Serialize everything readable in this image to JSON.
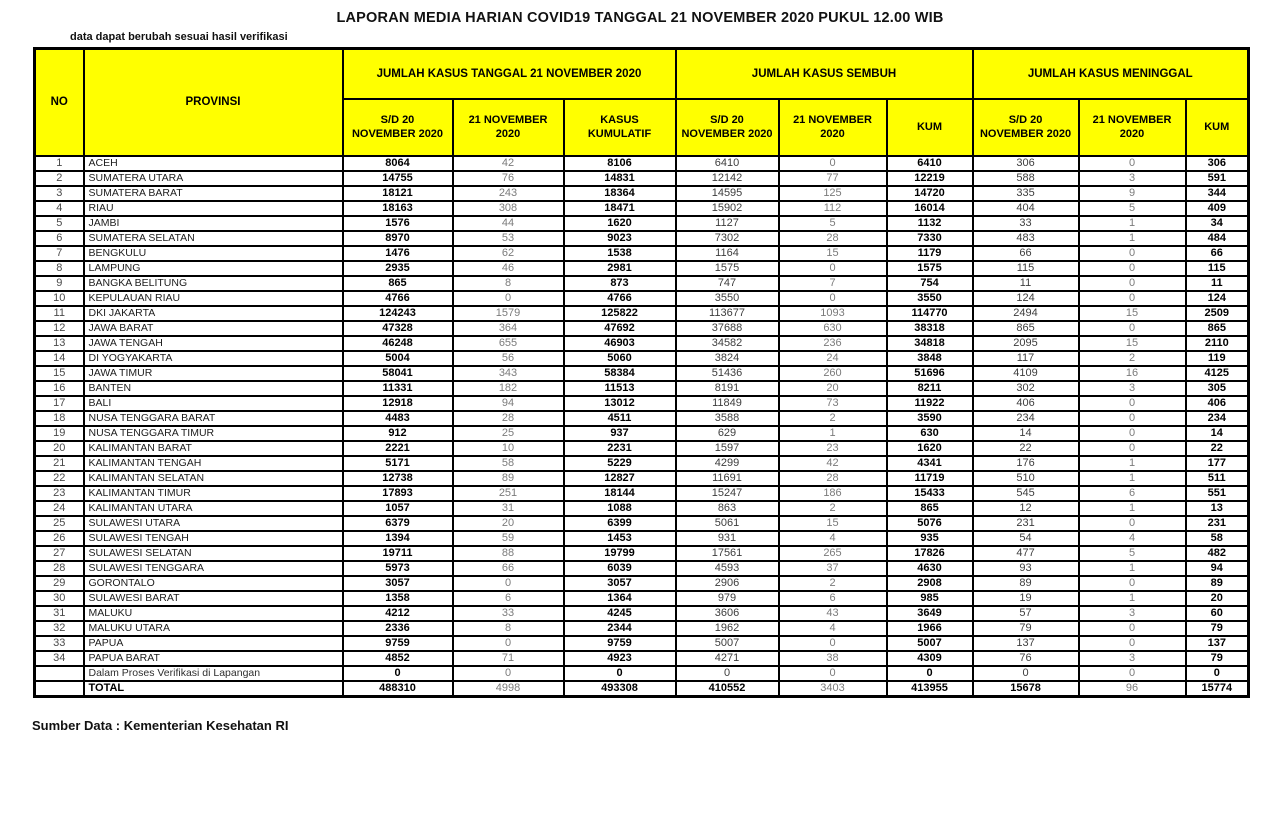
{
  "title": "LAPORAN MEDIA HARIAN COVID19 TANGGAL 21 NOVEMBER 2020 PUKUL 12.00 WIB",
  "subtitle": "data dapat berubah sesuai hasil verifikasi",
  "source_note": "Sumber Data : Kementerian Kesehatan RI",
  "colors": {
    "header_bg": "#FFFF00",
    "border": "#000000",
    "bold_text": "#000000",
    "muted_text": "#7b7b7b"
  },
  "table": {
    "no_label": "NO",
    "provinsi_label": "PROVINSI",
    "groups": [
      {
        "label": "JUMLAH KASUS TANGGAL 21 NOVEMBER 2020",
        "subcols": [
          "S/D 20 NOVEMBER 2020",
          "21 NOVEMBER 2020",
          "KASUS KUMULATIF"
        ]
      },
      {
        "label": "JUMLAH KASUS SEMBUH",
        "subcols": [
          "S/D 20 NOVEMBER 2020",
          "21 NOVEMBER 2020",
          "KUM"
        ]
      },
      {
        "label": "JUMLAH KASUS MENINGGAL",
        "subcols": [
          "S/D 20 NOVEMBER 2020",
          "21 NOVEMBER 2020",
          "KUM"
        ]
      }
    ],
    "rows": [
      {
        "no": "1",
        "province": "ACEH",
        "values": [
          "8064",
          "42",
          "8106",
          "6410",
          "0",
          "6410",
          "306",
          "0",
          "306"
        ]
      },
      {
        "no": "2",
        "province": "SUMATERA UTARA",
        "values": [
          "14755",
          "76",
          "14831",
          "12142",
          "77",
          "12219",
          "588",
          "3",
          "591"
        ]
      },
      {
        "no": "3",
        "province": "SUMATERA BARAT",
        "values": [
          "18121",
          "243",
          "18364",
          "14595",
          "125",
          "14720",
          "335",
          "9",
          "344"
        ]
      },
      {
        "no": "4",
        "province": "RIAU",
        "values": [
          "18163",
          "308",
          "18471",
          "15902",
          "112",
          "16014",
          "404",
          "5",
          "409"
        ]
      },
      {
        "no": "5",
        "province": "JAMBI",
        "values": [
          "1576",
          "44",
          "1620",
          "1127",
          "5",
          "1132",
          "33",
          "1",
          "34"
        ]
      },
      {
        "no": "6",
        "province": "SUMATERA SELATAN",
        "values": [
          "8970",
          "53",
          "9023",
          "7302",
          "28",
          "7330",
          "483",
          "1",
          "484"
        ]
      },
      {
        "no": "7",
        "province": "BENGKULU",
        "values": [
          "1476",
          "62",
          "1538",
          "1164",
          "15",
          "1179",
          "66",
          "0",
          "66"
        ]
      },
      {
        "no": "8",
        "province": "LAMPUNG",
        "values": [
          "2935",
          "46",
          "2981",
          "1575",
          "0",
          "1575",
          "115",
          "0",
          "115"
        ]
      },
      {
        "no": "9",
        "province": "BANGKA BELITUNG",
        "values": [
          "865",
          "8",
          "873",
          "747",
          "7",
          "754",
          "11",
          "0",
          "11"
        ]
      },
      {
        "no": "10",
        "province": "KEPULAUAN RIAU",
        "values": [
          "4766",
          "0",
          "4766",
          "3550",
          "0",
          "3550",
          "124",
          "0",
          "124"
        ]
      },
      {
        "no": "11",
        "province": "DKI JAKARTA",
        "values": [
          "124243",
          "1579",
          "125822",
          "113677",
          "1093",
          "114770",
          "2494",
          "15",
          "2509"
        ]
      },
      {
        "no": "12",
        "province": "JAWA BARAT",
        "values": [
          "47328",
          "364",
          "47692",
          "37688",
          "630",
          "38318",
          "865",
          "0",
          "865"
        ]
      },
      {
        "no": "13",
        "province": "JAWA TENGAH",
        "values": [
          "46248",
          "655",
          "46903",
          "34582",
          "236",
          "34818",
          "2095",
          "15",
          "2110"
        ]
      },
      {
        "no": "14",
        "province": "DI YOGYAKARTA",
        "values": [
          "5004",
          "56",
          "5060",
          "3824",
          "24",
          "3848",
          "117",
          "2",
          "119"
        ]
      },
      {
        "no": "15",
        "province": "JAWA TIMUR",
        "values": [
          "58041",
          "343",
          "58384",
          "51436",
          "260",
          "51696",
          "4109",
          "16",
          "4125"
        ]
      },
      {
        "no": "16",
        "province": "BANTEN",
        "values": [
          "11331",
          "182",
          "11513",
          "8191",
          "20",
          "8211",
          "302",
          "3",
          "305"
        ]
      },
      {
        "no": "17",
        "province": "BALI",
        "values": [
          "12918",
          "94",
          "13012",
          "11849",
          "73",
          "11922",
          "406",
          "0",
          "406"
        ]
      },
      {
        "no": "18",
        "province": "NUSA TENGGARA BARAT",
        "values": [
          "4483",
          "28",
          "4511",
          "3588",
          "2",
          "3590",
          "234",
          "0",
          "234"
        ]
      },
      {
        "no": "19",
        "province": "NUSA TENGGARA TIMUR",
        "values": [
          "912",
          "25",
          "937",
          "629",
          "1",
          "630",
          "14",
          "0",
          "14"
        ]
      },
      {
        "no": "20",
        "province": "KALIMANTAN BARAT",
        "values": [
          "2221",
          "10",
          "2231",
          "1597",
          "23",
          "1620",
          "22",
          "0",
          "22"
        ]
      },
      {
        "no": "21",
        "province": "KALIMANTAN TENGAH",
        "values": [
          "5171",
          "58",
          "5229",
          "4299",
          "42",
          "4341",
          "176",
          "1",
          "177"
        ]
      },
      {
        "no": "22",
        "province": "KALIMANTAN SELATAN",
        "values": [
          "12738",
          "89",
          "12827",
          "11691",
          "28",
          "11719",
          "510",
          "1",
          "511"
        ]
      },
      {
        "no": "23",
        "province": "KALIMANTAN TIMUR",
        "values": [
          "17893",
          "251",
          "18144",
          "15247",
          "186",
          "15433",
          "545",
          "6",
          "551"
        ]
      },
      {
        "no": "24",
        "province": "KALIMANTAN UTARA",
        "values": [
          "1057",
          "31",
          "1088",
          "863",
          "2",
          "865",
          "12",
          "1",
          "13"
        ]
      },
      {
        "no": "25",
        "province": "SULAWESI UTARA",
        "values": [
          "6379",
          "20",
          "6399",
          "5061",
          "15",
          "5076",
          "231",
          "0",
          "231"
        ]
      },
      {
        "no": "26",
        "province": "SULAWESI TENGAH",
        "values": [
          "1394",
          "59",
          "1453",
          "931",
          "4",
          "935",
          "54",
          "4",
          "58"
        ]
      },
      {
        "no": "27",
        "province": "SULAWESI SELATAN",
        "values": [
          "19711",
          "88",
          "19799",
          "17561",
          "265",
          "17826",
          "477",
          "5",
          "482"
        ]
      },
      {
        "no": "28",
        "province": "SULAWESI TENGGARA",
        "values": [
          "5973",
          "66",
          "6039",
          "4593",
          "37",
          "4630",
          "93",
          "1",
          "94"
        ]
      },
      {
        "no": "29",
        "province": "GORONTALO",
        "values": [
          "3057",
          "0",
          "3057",
          "2906",
          "2",
          "2908",
          "89",
          "0",
          "89"
        ]
      },
      {
        "no": "30",
        "province": "SULAWESI BARAT",
        "values": [
          "1358",
          "6",
          "1364",
          "979",
          "6",
          "985",
          "19",
          "1",
          "20"
        ]
      },
      {
        "no": "31",
        "province": "MALUKU",
        "values": [
          "4212",
          "33",
          "4245",
          "3606",
          "43",
          "3649",
          "57",
          "3",
          "60"
        ]
      },
      {
        "no": "32",
        "province": "MALUKU UTARA",
        "values": [
          "2336",
          "8",
          "2344",
          "1962",
          "4",
          "1966",
          "79",
          "0",
          "79"
        ]
      },
      {
        "no": "33",
        "province": "PAPUA",
        "values": [
          "9759",
          "0",
          "9759",
          "5007",
          "0",
          "5007",
          "137",
          "0",
          "137"
        ]
      },
      {
        "no": "34",
        "province": "PAPUA BARAT",
        "values": [
          "4852",
          "71",
          "4923",
          "4271",
          "38",
          "4309",
          "76",
          "3",
          "79"
        ]
      }
    ],
    "verification_row": {
      "no": "",
      "province": "Dalam Proses Verifikasi di Lapangan",
      "values": [
        "0",
        "0",
        "0",
        "0",
        "0",
        "0",
        "0",
        "0",
        "0"
      ]
    },
    "total_row": {
      "no": "",
      "province": "TOTAL",
      "values": [
        "488310",
        "4998",
        "493308",
        "410552",
        "3403",
        "413955",
        "15678",
        "96",
        "15774"
      ]
    }
  }
}
